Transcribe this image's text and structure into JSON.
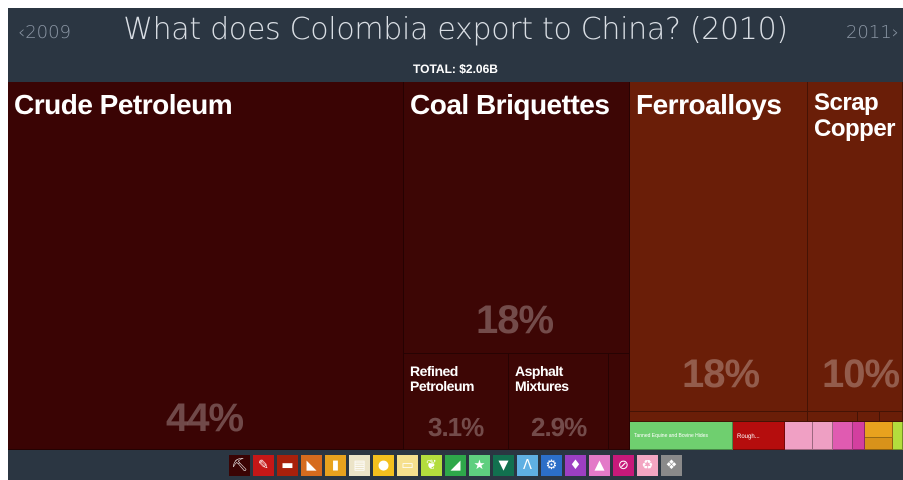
{
  "header": {
    "title": "What does Colombia export to China? (2010)",
    "prev_year": "2009",
    "next_year": "2011",
    "total": "TOTAL: $2.06B"
  },
  "chart_data": {
    "type": "treemap",
    "title": "What does Colombia export to China? (2010)",
    "total": "TOTAL: $2.06B",
    "items": [
      {
        "name": "Crude Petroleum",
        "share_pct": 44,
        "label": "44%",
        "color": "#3a0404"
      },
      {
        "name": "Coal Briquettes",
        "share_pct": 18,
        "label": "18%",
        "color": "#3d0605"
      },
      {
        "name": "Refined Petroleum",
        "share_pct": 3.1,
        "label": "3.1%",
        "color": "#3d0605"
      },
      {
        "name": "Asphalt Mixtures",
        "share_pct": 2.9,
        "label": "2.9%",
        "color": "#3d0605"
      },
      {
        "name": "Ferroalloys",
        "share_pct": 18,
        "label": "18%",
        "color": "#6a1e08"
      },
      {
        "name": "Scrap Copper",
        "share_pct": 10,
        "label": "10%",
        "color": "#6a1e08"
      },
      {
        "name": "Tanned Equine and Bovine Hides",
        "share_pct": null,
        "label": "",
        "color": "#6fcf6f"
      },
      {
        "name": "Rough...",
        "share_pct": null,
        "label": "",
        "color": "#b50d0d"
      }
    ]
  },
  "category_icons": [
    {
      "name": "pickaxe-icon",
      "glyph": "⛏",
      "color": "#3a0404"
    },
    {
      "name": "chemical-icon",
      "glyph": "✎",
      "color": "#c51717"
    },
    {
      "name": "anvil-icon",
      "glyph": "▬",
      "color": "#a8200b"
    },
    {
      "name": "ruler-icon",
      "glyph": "◣",
      "color": "#d66b1e"
    },
    {
      "name": "bottle-icon",
      "glyph": "▮",
      "color": "#e8a21e"
    },
    {
      "name": "paper-icon",
      "glyph": "▤",
      "color": "#ece4c8"
    },
    {
      "name": "fruit-icon",
      "glyph": "●",
      "color": "#f4c01e"
    },
    {
      "name": "stone-icon",
      "glyph": "▭",
      "color": "#f6e08e"
    },
    {
      "name": "grain-icon",
      "glyph": "❦",
      "color": "#b3dd3d"
    },
    {
      "name": "shoe-icon",
      "glyph": "◢",
      "color": "#2ea84a"
    },
    {
      "name": "star-icon",
      "glyph": "★",
      "color": "#5fcf7f"
    },
    {
      "name": "shirt-icon",
      "glyph": "▼",
      "color": "#12704f"
    },
    {
      "name": "road-icon",
      "glyph": "Λ",
      "color": "#5fb0e3"
    },
    {
      "name": "gears-icon",
      "glyph": "⚙",
      "color": "#2c6fc8"
    },
    {
      "name": "diamond-icon",
      "glyph": "♦",
      "color": "#9d3fc2"
    },
    {
      "name": "flask-icon",
      "glyph": "▲",
      "color": "#e37ac8"
    },
    {
      "name": "no-sign-icon",
      "glyph": "⊘",
      "color": "#c7197a"
    },
    {
      "name": "recycle-icon",
      "glyph": "♻",
      "color": "#f3a6c2"
    },
    {
      "name": "box-icon",
      "glyph": "❖",
      "color": "#8a8a8a"
    }
  ]
}
